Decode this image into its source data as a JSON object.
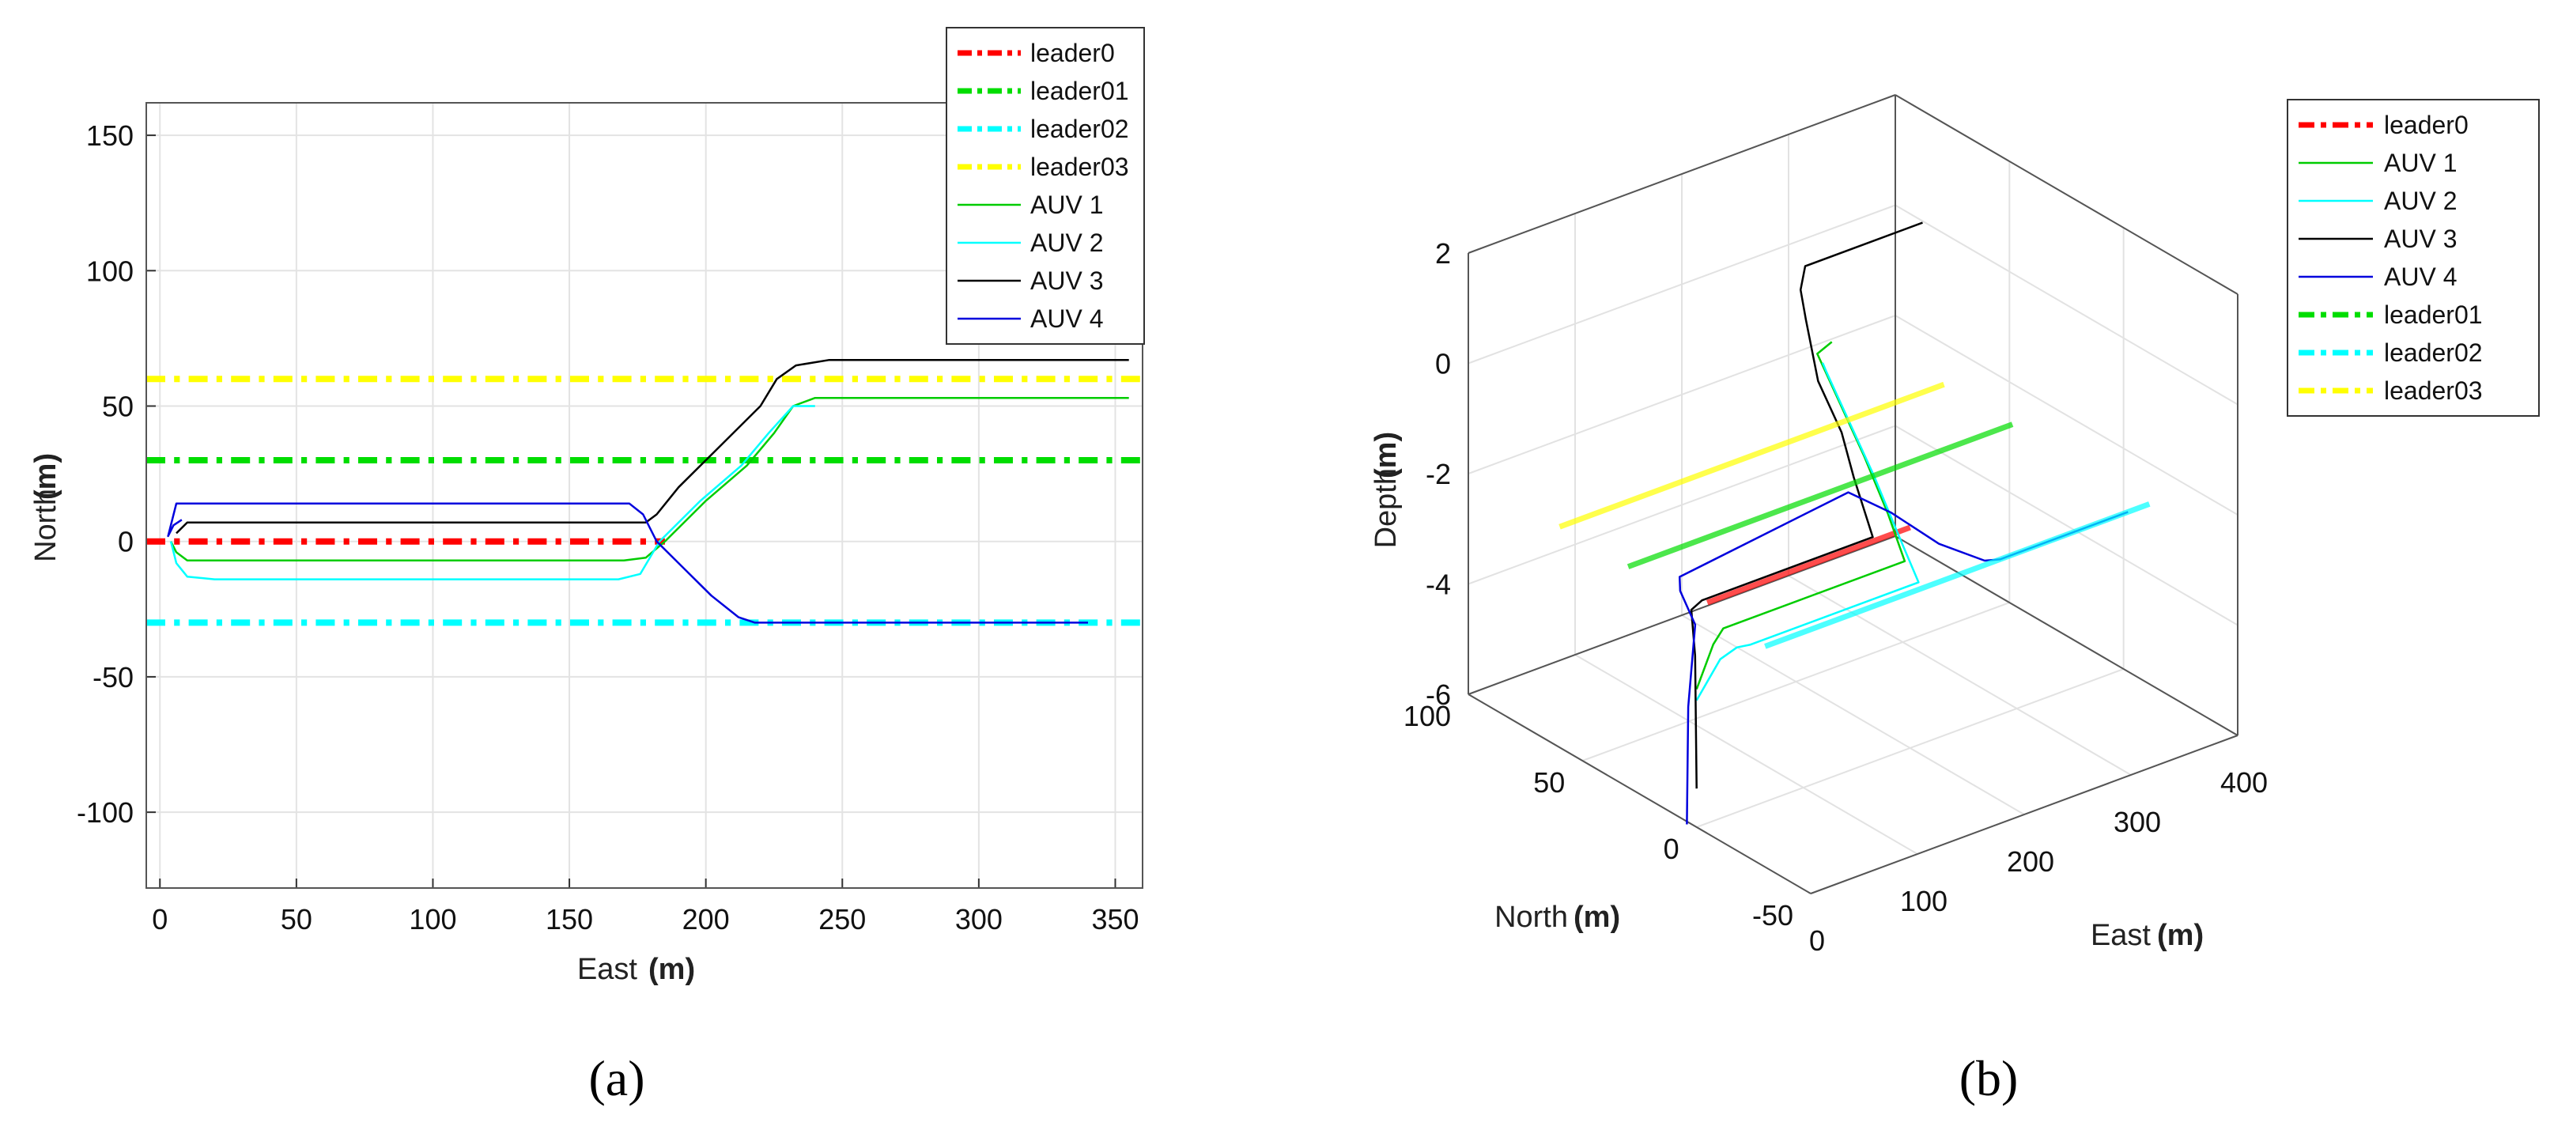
{
  "chart_data": [
    {
      "type": "line",
      "panel_label": "(a)",
      "xlabel": "East",
      "xlabel_unit": "(m)",
      "ylabel": "North",
      "ylabel_unit": "(m)",
      "xlim": [
        -5,
        360
      ],
      "ylim": [
        -128,
        162
      ],
      "xticks": [
        0,
        50,
        100,
        150,
        200,
        250,
        300,
        350
      ],
      "yticks": [
        -100,
        -50,
        0,
        50,
        100,
        150
      ],
      "grid": true,
      "legend_position": "top-right",
      "legend": [
        "leader0",
        "leader01",
        "leader02",
        "leader03",
        "AUV 1",
        "AUV 2",
        "AUV 3",
        "AUV 4"
      ],
      "series": [
        {
          "name": "leader0",
          "color": "#ff0000",
          "style": "dashdot",
          "width": 8,
          "x": [
            -5,
            185
          ],
          "y": [
            0,
            0
          ]
        },
        {
          "name": "leader01",
          "color": "#00dd00",
          "style": "dashdot",
          "width": 8,
          "x": [
            -5,
            360
          ],
          "y": [
            30,
            30
          ]
        },
        {
          "name": "leader02",
          "color": "#00ffff",
          "style": "dashdot",
          "width": 8,
          "x": [
            -5,
            360
          ],
          "y": [
            -30,
            -30
          ]
        },
        {
          "name": "leader03",
          "color": "#ffff00",
          "style": "dashdot",
          "width": 8,
          "x": [
            -5,
            360
          ],
          "y": [
            60,
            60
          ]
        },
        {
          "name": "AUV 1",
          "color": "#00cc00",
          "style": "solid",
          "width": 2.5,
          "x": [
            4,
            6,
            10,
            18,
            170,
            178,
            185,
            200,
            215,
            225,
            232,
            240,
            355
          ],
          "y": [
            0,
            -4,
            -7,
            -7,
            -7,
            -6,
            0,
            15,
            28,
            40,
            50,
            53,
            53
          ]
        },
        {
          "name": "AUV 2",
          "color": "#00ffff",
          "style": "solid",
          "width": 2.5,
          "x": [
            4,
            6,
            10,
            20,
            168,
            176,
            183,
            198,
            213,
            223,
            232,
            240
          ],
          "y": [
            0,
            -8,
            -13,
            -14,
            -14,
            -12,
            0,
            15,
            28,
            40,
            50,
            50
          ]
        },
        {
          "name": "AUV 3",
          "color": "#000000",
          "style": "solid",
          "width": 2.5,
          "x": [
            6,
            10,
            20,
            172,
            178,
            182,
            190,
            200,
            210,
            220,
            226,
            233,
            245,
            355
          ],
          "y": [
            3,
            7,
            7,
            7,
            7,
            10,
            20,
            30,
            40,
            50,
            60,
            65,
            67,
            67
          ]
        },
        {
          "name": "AUV 4",
          "color": "#0000dd",
          "style": "solid",
          "width": 2.5,
          "x": [
            8,
            5,
            3,
            6,
            14,
            172,
            177,
            182,
            192,
            202,
            212,
            218,
            230,
            340
          ],
          "y": [
            8,
            6,
            2,
            14,
            14,
            14,
            10,
            0,
            -10,
            -20,
            -28,
            -30,
            -30,
            -30
          ]
        }
      ]
    },
    {
      "type": "line",
      "projection": "3d",
      "panel_label": "(b)",
      "xlabel": "East",
      "xlabel_unit": "(m)",
      "ylabel": "North",
      "ylabel_unit": "(m)",
      "zlabel": "Depth",
      "zlabel_unit": "(m)",
      "xlim": [
        0,
        400
      ],
      "ylim": [
        -50,
        100
      ],
      "zlim": [
        -6,
        2
      ],
      "xticks": [
        0,
        100,
        200,
        300,
        400
      ],
      "yticks": [
        -50,
        0,
        50,
        100
      ],
      "zticks": [
        -6,
        -4,
        -2,
        0,
        2
      ],
      "grid": true,
      "legend_position": "top-right",
      "legend": [
        "leader0",
        "AUV 1",
        "AUV 2",
        "AUV 3",
        "AUV 4",
        "leader01",
        "leader02",
        "leader03"
      ],
      "series": [
        {
          "name": "leader0",
          "color": "#ff0000",
          "style": "dashdot",
          "width": 7,
          "east": [
            10,
            200
          ],
          "north": [
            0,
            0
          ],
          "depth": [
            -2,
            -2
          ]
        },
        {
          "name": "AUV 1",
          "color": "#00cc00",
          "style": "solid",
          "width": 2.5,
          "east": [
            0,
            5,
            10,
            18,
            180,
            190,
            200,
            210,
            220,
            240
          ],
          "north": [
            0,
            -5,
            -7,
            -7,
            -7,
            5,
            20,
            35,
            50,
            53
          ],
          "depth": [
            -3.5,
            -2.6,
            -2.3,
            -2.3,
            -2.3,
            -1.8,
            -1.2,
            -0.7,
            -0.2,
            -0.2
          ]
        },
        {
          "name": "AUV 2",
          "color": "#00ffff",
          "style": "solid",
          "width": 2.5,
          "east": [
            0,
            5,
            10,
            20,
            178,
            188,
            198,
            208,
            218,
            225
          ],
          "north": [
            0,
            -8,
            -13,
            -14,
            -14,
            0,
            15,
            30,
            45,
            50
          ],
          "depth": [
            -3.7,
            -2.8,
            -2.5,
            -2.5,
            -2.5,
            -2.0,
            -1.4,
            -0.9,
            -0.4,
            -0.4
          ]
        },
        {
          "name": "AUV 3",
          "color": "#000000",
          "style": "solid",
          "width": 2.5,
          "east": [
            0,
            5,
            10,
            20,
            180,
            190,
            200,
            210,
            220,
            230,
            245,
            355
          ],
          "north": [
            0,
            3,
            7,
            7,
            7,
            20,
            30,
            45,
            55,
            62,
            67,
            67
          ],
          "depth": [
            -5.3,
            -3.0,
            -2.3,
            -2.2,
            -2.2,
            -1.5,
            -1.0,
            -0.5,
            0.3,
            0.6,
            0.8,
            0.8
          ]
        },
        {
          "name": "AUV 4",
          "color": "#0000dd",
          "style": "solid",
          "width": 2.5,
          "east": [
            8,
            5,
            3,
            6,
            14,
            172,
            182,
            195,
            210,
            220,
            340
          ],
          "north": [
            8,
            6,
            2,
            10,
            14,
            14,
            0,
            -15,
            -28,
            -30,
            -30
          ],
          "depth": [
            -6.2,
            -4.0,
            -2.4,
            -2.0,
            -1.9,
            -1.5,
            -1.6,
            -1.9,
            -2.0,
            -2.0,
            -2.0
          ]
        },
        {
          "name": "leader01",
          "color": "#00dd00",
          "style": "dashdot",
          "width": 7,
          "east": [
            0,
            360
          ],
          "north": [
            30,
            30
          ],
          "depth": [
            -2,
            -2
          ]
        },
        {
          "name": "leader02",
          "color": "#00ffff",
          "style": "dashdot",
          "width": 7,
          "east": [
            0,
            360
          ],
          "north": [
            -30,
            -30
          ],
          "depth": [
            -2,
            -2
          ]
        },
        {
          "name": "leader03",
          "color": "#ffff00",
          "style": "dashdot",
          "width": 7,
          "east": [
            0,
            360
          ],
          "north": [
            60,
            60
          ],
          "depth": [
            -2,
            -2
          ]
        }
      ]
    }
  ]
}
